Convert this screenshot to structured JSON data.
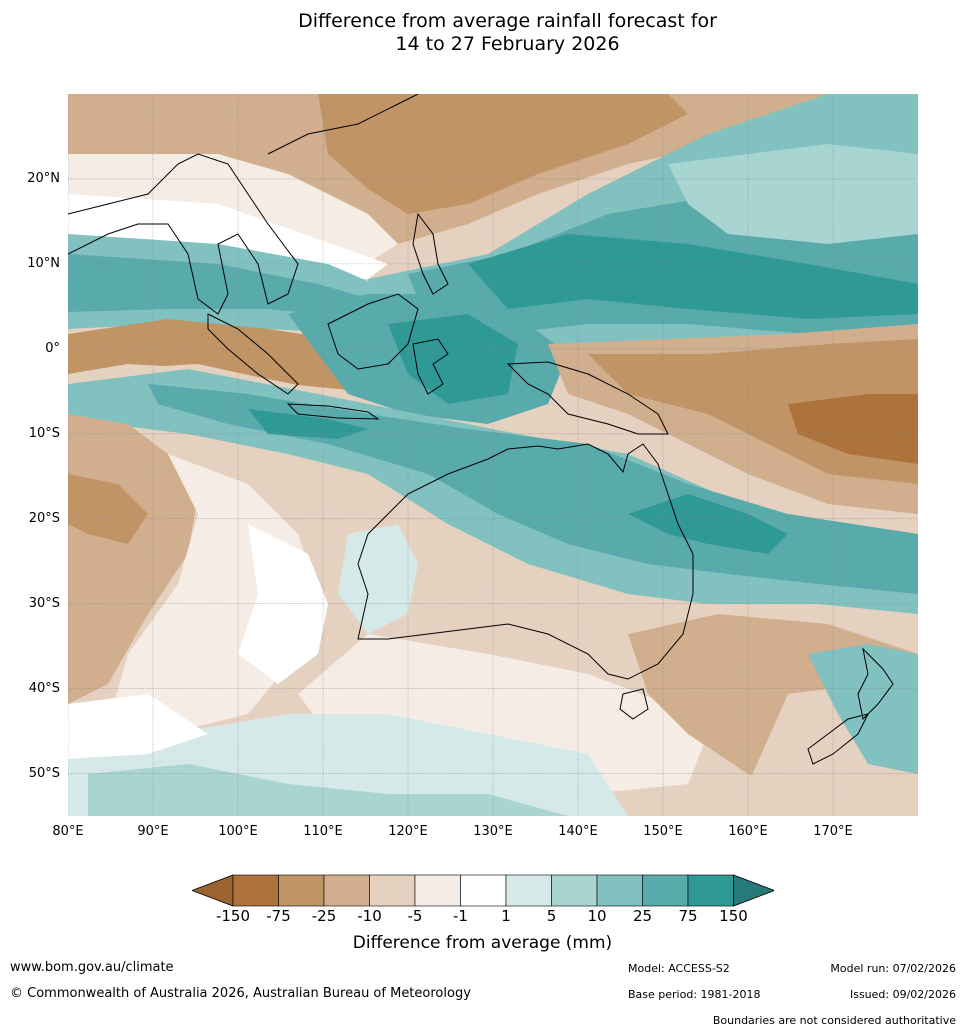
{
  "title": {
    "line1": "Difference from average rainfall forecast for",
    "line2": "14 to 27 February 2026"
  },
  "map": {
    "lon_range": [
      80,
      180
    ],
    "lat_range": [
      -55,
      30
    ],
    "lat_ticks": [
      {
        "value": 20,
        "label": "20°N"
      },
      {
        "value": 10,
        "label": "10°N"
      },
      {
        "value": 0,
        "label": "0°"
      },
      {
        "value": -10,
        "label": "10°S"
      },
      {
        "value": -20,
        "label": "20°S"
      },
      {
        "value": -30,
        "label": "30°S"
      },
      {
        "value": -40,
        "label": "40°S"
      },
      {
        "value": -50,
        "label": "50°S"
      }
    ],
    "lon_ticks": [
      {
        "value": 80,
        "label": "80°E"
      },
      {
        "value": 90,
        "label": "90°E"
      },
      {
        "value": 100,
        "label": "100°E"
      },
      {
        "value": 110,
        "label": "110°E"
      },
      {
        "value": 120,
        "label": "120°E"
      },
      {
        "value": 130,
        "label": "130°E"
      },
      {
        "value": 140,
        "label": "140°E"
      },
      {
        "value": 150,
        "label": "150°E"
      },
      {
        "value": 160,
        "label": "160°E"
      },
      {
        "value": 170,
        "label": "170°E"
      }
    ],
    "colors": {
      "lt_m150": "#9b6330",
      "m150_m75": "#ae733c",
      "m75_m25": "#c19466",
      "m25_m10": "#d1ae8e",
      "m10_m5": "#e5d1c0",
      "m5_m1": "#f5ece6",
      "m1_1": "#ffffff",
      "p1_5": "#d5e9e8",
      "p5_10": "#a8d4d2",
      "p10_25": "#81c1bf",
      "p25_75": "#59aaaa",
      "p75_150": "#2f9996",
      "gt_150": "#267a77",
      "coast": "#000000",
      "border": "#808080",
      "grid": "#888888"
    }
  },
  "colorbar": {
    "title": "Difference from average (mm)",
    "labels": [
      "-150",
      "-75",
      "-25",
      "-10",
      "-5",
      "-1",
      "1",
      "5",
      "10",
      "25",
      "75",
      "150"
    ]
  },
  "footer": {
    "url": "www.bom.gov.au/climate",
    "copyright": "© Commonwealth of Australia 2026, Australian Bureau of Meteorology",
    "model": "Model: ACCESS-S2",
    "base_period": "Base period: 1981-2018",
    "model_run": "Model run: 07/02/2026",
    "issued": "Issued: 09/02/2026",
    "disclaimer": "Boundaries are not considered authoritative"
  }
}
